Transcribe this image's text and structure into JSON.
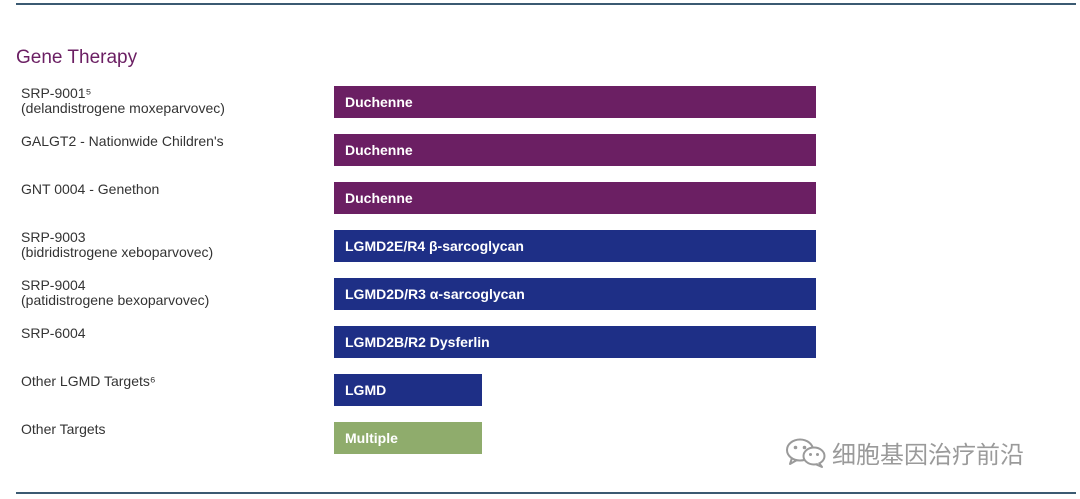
{
  "section_title": "Gene Therapy",
  "colors": {
    "duchenne": "#6b1f63",
    "lgmd": "#1e2f86",
    "multiple": "#8fac6c",
    "rule": "#3b5a72",
    "title": "#6b1f63"
  },
  "rows": [
    {
      "name": "SRP-9001⁵",
      "sub": "(delandistrogene moxeparvovec)",
      "indication": "Duchenne",
      "color": "duchenne"
    },
    {
      "name": "GALGT2 - Nationwide Children's",
      "sub": "",
      "indication": "Duchenne",
      "color": "duchenne"
    },
    {
      "name": "GNT 0004 - Genethon",
      "sub": "",
      "indication": "Duchenne",
      "color": "duchenne"
    },
    {
      "name": "SRP-9003",
      "sub": "(bidridistrogene xeboparvovec)",
      "indication": "LGMD2E/R4 β-sarcoglycan",
      "color": "lgmd"
    },
    {
      "name": "SRP-9004",
      "sub": "(patidistrogene bexoparvovec)",
      "indication": "LGMD2D/R3 α-sarcoglycan",
      "color": "lgmd"
    },
    {
      "name": "SRP-6004",
      "sub": "",
      "indication": "LGMD2B/R2 Dysferlin",
      "color": "lgmd"
    },
    {
      "name": "Other LGMD Targets⁶",
      "sub": "",
      "indication": "LGMD",
      "color": "lgmd"
    },
    {
      "name": "Other Targets",
      "sub": "",
      "indication": "Multiple",
      "color": "multiple"
    }
  ],
  "watermark": {
    "text": "细胞基因治疗前沿",
    "icon": "wechat-icon"
  }
}
